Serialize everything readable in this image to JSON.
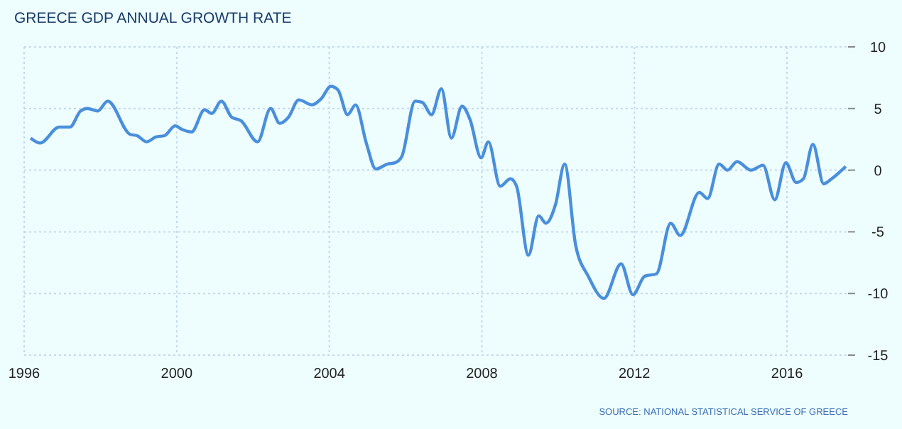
{
  "chart_data": {
    "type": "line",
    "title": "GREECE GDP ANNUAL GROWTH RATE",
    "annotations": [
      "SOURCE: NATIONAL STATISTICAL SERVICE OF GREECE"
    ],
    "x": [
      1996.17,
      1996.42,
      1996.92,
      1997.2,
      1997.48,
      1997.66,
      1997.93,
      1998.19,
      1998.78,
      1998.96,
      1999.21,
      1999.46,
      1999.68,
      1999.96,
      2000.14,
      2000.39,
      2000.73,
      2000.92,
      2001.17,
      2001.44,
      2001.69,
      2002.12,
      2002.46,
      2002.7,
      2002.93,
      2003.2,
      2003.55,
      2003.79,
      2004.04,
      2004.23,
      2004.48,
      2004.69,
      2004.97,
      2005.22,
      2005.53,
      2005.72,
      2005.9,
      2006.25,
      2006.44,
      2006.68,
      2006.94,
      2007.2,
      2007.48,
      2007.69,
      2007.98,
      2008.17,
      2008.48,
      2008.75,
      2008.91,
      2009.22,
      2009.49,
      2009.68,
      2009.93,
      2010.17,
      2010.46,
      2010.79,
      2011.2,
      2011.65,
      2011.96,
      2012.27,
      2012.58,
      2012.95,
      2013.2,
      2013.7,
      2013.92,
      2014.22,
      2014.44,
      2014.69,
      2015.06,
      2015.37,
      2015.68,
      2015.97,
      2016.24,
      2016.43,
      2016.68,
      2016.96,
      2017.17,
      2017.54
    ],
    "series": [
      {
        "color": "#4a8fdc",
        "values": [
          2.6,
          2.2,
          3.5,
          3.5,
          4.8,
          5.0,
          4.8,
          5.6,
          2.9,
          2.8,
          2.3,
          2.7,
          2.8,
          3.6,
          3.3,
          3.1,
          4.9,
          4.6,
          5.6,
          4.3,
          4.0,
          2.3,
          5.0,
          3.8,
          4.3,
          5.7,
          5.3,
          5.8,
          6.8,
          6.5,
          4.5,
          5.3,
          2.2,
          0.1,
          0.5,
          0.6,
          1.1,
          5.6,
          5.5,
          4.5,
          6.6,
          2.6,
          5.2,
          4.1,
          1.0,
          2.3,
          -1.3,
          -0.7,
          -1.3,
          -6.9,
          -3.7,
          -4.3,
          -2.8,
          0.5,
          -6.1,
          -8.6,
          -10.4,
          -7.6,
          -10.1,
          -8.6,
          -8.4,
          -4.3,
          -5.3,
          -1.8,
          -2.3,
          0.5,
          0.0,
          0.7,
          0.0,
          0.4,
          -2.4,
          0.6,
          -1.0,
          -0.7,
          2.1,
          -1.1,
          -0.7,
          0.3
        ]
      }
    ],
    "xlim": [
      1996,
      2017.6
    ],
    "xticks": [
      1996,
      2000,
      2004,
      2008,
      2012,
      2016
    ],
    "ylim": [
      -15,
      10
    ],
    "yticks": [
      -15,
      -10,
      -5,
      0,
      5,
      10
    ],
    "grid": true,
    "marker": "none",
    "line_style": "solid"
  }
}
